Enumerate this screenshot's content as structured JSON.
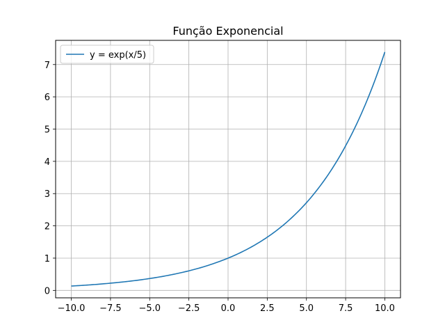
{
  "chart_data": {
    "type": "line",
    "title": "Função Exponencial",
    "xlabel": "",
    "ylabel": "",
    "xlim": [
      -11,
      11
    ],
    "ylim": [
      -0.23,
      7.75
    ],
    "xticks": [
      -10.0,
      -7.5,
      -5.0,
      -2.5,
      0.0,
      2.5,
      5.0,
      7.5,
      10.0
    ],
    "xtick_labels": [
      "−10.0",
      "−7.5",
      "−5.0",
      "−2.5",
      "0.0",
      "2.5",
      "5.0",
      "7.5",
      "10.0"
    ],
    "yticks": [
      0,
      1,
      2,
      3,
      4,
      5,
      6,
      7
    ],
    "ytick_labels": [
      "0",
      "1",
      "2",
      "3",
      "4",
      "5",
      "6",
      "7"
    ],
    "grid": true,
    "legend_position": "top-left",
    "series": [
      {
        "name": "y = exp(x/5)",
        "color": "#1f77b4",
        "x": [
          -10,
          -9,
          -8,
          -7,
          -6,
          -5,
          -4,
          -3,
          -2,
          -1,
          0,
          1,
          2,
          3,
          4,
          5,
          6,
          7,
          8,
          9,
          10
        ],
        "y": [
          0.135,
          0.165,
          0.202,
          0.247,
          0.301,
          0.368,
          0.449,
          0.549,
          0.67,
          0.819,
          1.0,
          1.221,
          1.492,
          1.822,
          2.226,
          2.718,
          3.32,
          4.055,
          4.953,
          6.05,
          7.389
        ]
      }
    ]
  }
}
